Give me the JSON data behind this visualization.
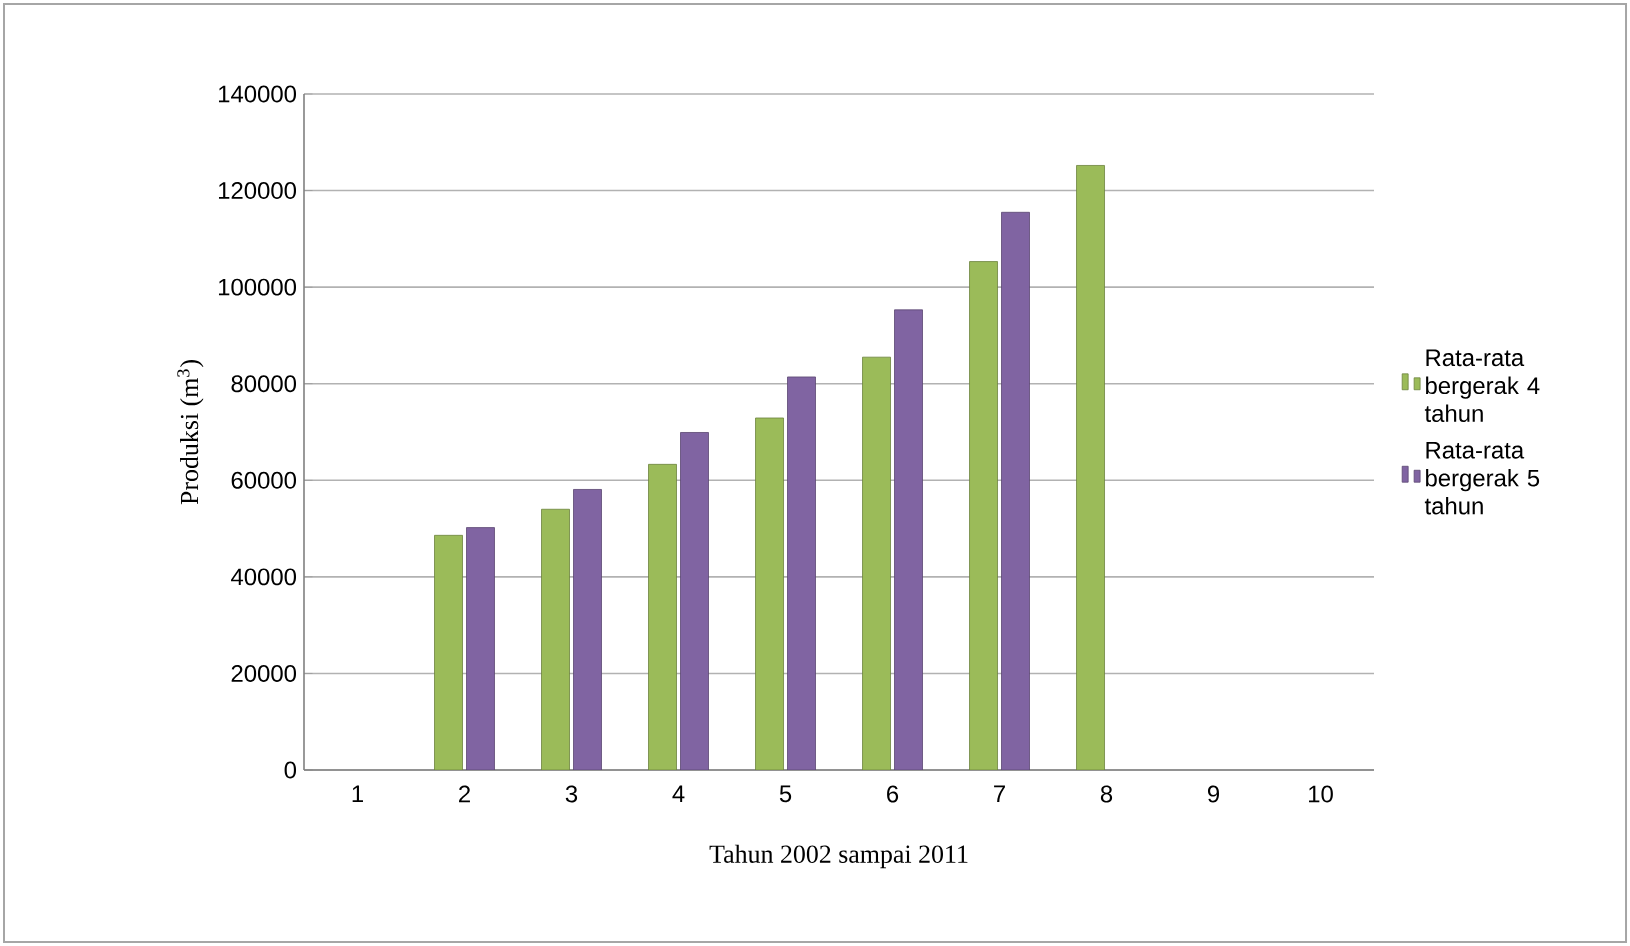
{
  "chart_data": {
    "type": "bar",
    "xlabel": "Tahun 2002 sampai 2011",
    "ylabel": "Produksi (m$^{3}$)",
    "categories": [
      "1",
      "2",
      "3",
      "4",
      "5",
      "6",
      "7",
      "8",
      "9",
      "10"
    ],
    "series": [
      {
        "name": "Rata-rata bergerak 4 tahun",
        "color": "#9bbb59",
        "values": [
          null,
          48600,
          54000,
          63300,
          72900,
          85500,
          105300,
          125200,
          null,
          null
        ]
      },
      {
        "name": "Rata-rata bergerak 5 tahun",
        "color": "#8064a2",
        "values": [
          null,
          50200,
          58100,
          69900,
          81400,
          95300,
          115500,
          null,
          null,
          null
        ]
      }
    ],
    "ylim": [
      0,
      140000
    ],
    "yticks": [
      0,
      20000,
      40000,
      60000,
      80000,
      100000,
      120000,
      140000
    ],
    "grid": "y",
    "legend": "right"
  }
}
